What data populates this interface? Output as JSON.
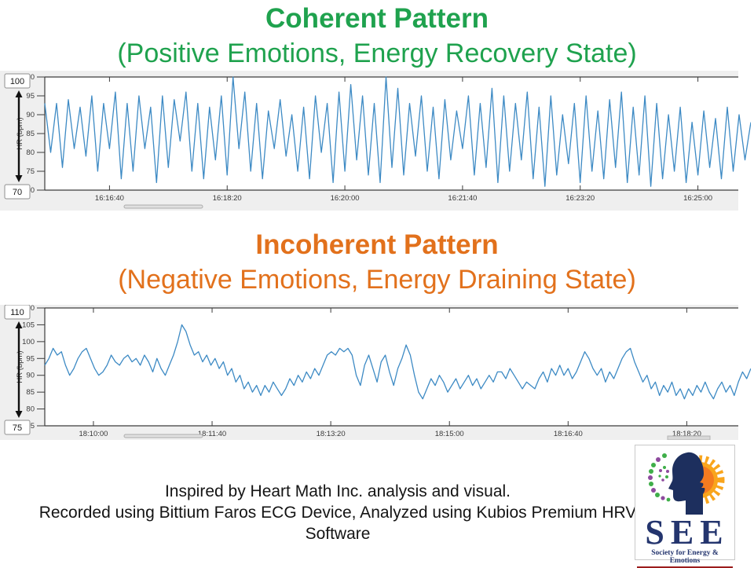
{
  "chart_data": [
    {
      "type": "line",
      "name": "coherent-hr",
      "title": "Coherent Pattern",
      "subtitle": "(Positive Emotions, Energy Recovery State)",
      "title_color": "#1fa24e",
      "ylabel": "HR (bpm)",
      "ylim": [
        70,
        100
      ],
      "yticks": [
        70,
        75,
        80,
        85,
        90,
        95,
        100
      ],
      "range_max_label": "100",
      "range_min_label": "70",
      "xlim": [
        0,
        600
      ],
      "xtick_positions": [
        55,
        155,
        255,
        355,
        455,
        555
      ],
      "xtick_labels": [
        "16:16:40",
        "16:18:20",
        "16:20:00",
        "16:21:40",
        "16:23:20",
        "16:25:00"
      ],
      "line_color": "#3d8ac4",
      "grid": false,
      "y_values": [
        93,
        80,
        93,
        76,
        94,
        81,
        92,
        79,
        95,
        75,
        93,
        81,
        96,
        73,
        93,
        75,
        95,
        81,
        92,
        72,
        95,
        76,
        94,
        83,
        96,
        75,
        93,
        73,
        92,
        78,
        95,
        74,
        100,
        81,
        96,
        75,
        93,
        73,
        91,
        81,
        94,
        79,
        90,
        75,
        92,
        73,
        95,
        80,
        93,
        72,
        96,
        75,
        98,
        78,
        95,
        74,
        93,
        72,
        100,
        76,
        97,
        74,
        93,
        79,
        95,
        75,
        92,
        73,
        94,
        78,
        91,
        81,
        95,
        74,
        93,
        76,
        97,
        72,
        95,
        75,
        93,
        78,
        96,
        73,
        92,
        71,
        95,
        74,
        90,
        77,
        93,
        72,
        95,
        75,
        91,
        73,
        94,
        76,
        96,
        72,
        92,
        74,
        95,
        71,
        93,
        73,
        90,
        75,
        92,
        72,
        88,
        74,
        91,
        76,
        89,
        73,
        92,
        75,
        90,
        78,
        88
      ]
    },
    {
      "type": "line",
      "name": "incoherent-hr",
      "title": "Incoherent Pattern",
      "subtitle": "(Negative Emotions, Energy Draining State)",
      "title_color": "#e2711c",
      "ylabel": "HR (bpm)",
      "ylim": [
        75,
        110
      ],
      "yticks": [
        75,
        80,
        85,
        90,
        95,
        100,
        105,
        110
      ],
      "range_max_label": "110",
      "range_min_label": "75",
      "xlim": [
        0,
        595
      ],
      "xtick_positions": [
        41,
        141,
        241,
        341,
        441,
        541
      ],
      "xtick_labels": [
        "18:10:00",
        "18:11:40",
        "18:13:20",
        "18:15:00",
        "18:16:40",
        "18:18:20"
      ],
      "line_color": "#3d8ac4",
      "grid": false,
      "y_values": [
        93,
        95,
        98,
        96,
        97,
        93,
        90,
        92,
        95,
        97,
        98,
        95,
        92,
        90,
        91,
        93,
        96,
        94,
        93,
        95,
        96,
        94,
        95,
        93,
        96,
        94,
        91,
        95,
        92,
        90,
        93,
        96,
        100,
        105,
        103,
        99,
        96,
        97,
        94,
        96,
        93,
        95,
        92,
        94,
        90,
        92,
        88,
        90,
        86,
        88,
        85,
        87,
        84,
        87,
        85,
        88,
        86,
        84,
        86,
        89,
        87,
        90,
        88,
        91,
        89,
        92,
        90,
        93,
        96,
        97,
        96,
        98,
        97,
        98,
        96,
        90,
        87,
        93,
        96,
        92,
        88,
        94,
        96,
        91,
        87,
        92,
        95,
        99,
        96,
        90,
        85,
        83,
        86,
        89,
        87,
        90,
        88,
        85,
        87,
        89,
        86,
        88,
        90,
        87,
        89,
        86,
        88,
        90,
        88,
        91,
        91,
        89,
        92,
        90,
        88,
        86,
        88,
        87,
        86,
        89,
        91,
        88,
        92,
        90,
        93,
        90,
        92,
        89,
        91,
        94,
        97,
        95,
        92,
        90,
        92,
        88,
        91,
        89,
        92,
        95,
        97,
        98,
        94,
        91,
        88,
        90,
        86,
        88,
        84,
        87,
        85,
        88,
        84,
        86,
        83,
        86,
        84,
        87,
        85,
        88,
        85,
        83,
        86,
        88,
        85,
        87,
        84,
        88,
        91,
        89,
        92
      ]
    }
  ],
  "footer": {
    "lines": [
      "Inspired by Heart Math Inc. analysis and visual.",
      "Recorded using Bittium Faros ECG Device, Analyzed using Kubios Premium HRV",
      "Software"
    ]
  },
  "logo": {
    "acronym": "SEE",
    "tagline": "Society for Energy & Emotions",
    "navy": "#24356e",
    "sun_orange": "#f7941d",
    "sun_core": "#f47b20",
    "dot_green": "#3fae49",
    "dot_purple": "#8e4a9e"
  }
}
